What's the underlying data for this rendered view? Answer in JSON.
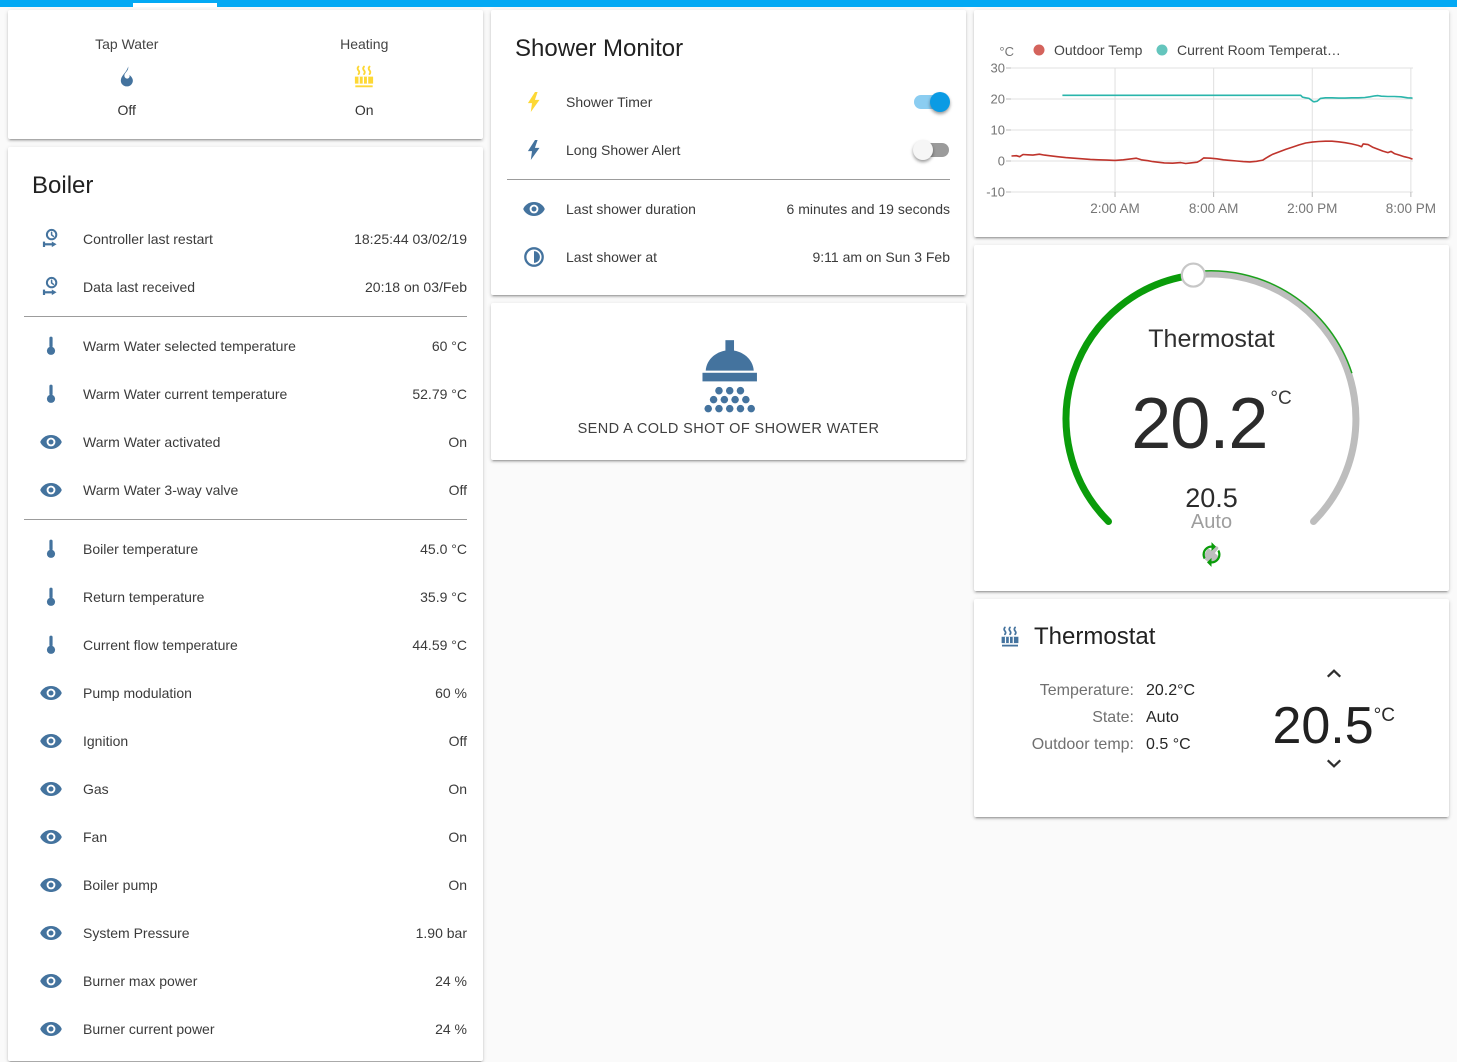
{
  "theme": {
    "topbar_color": "#03a9f4",
    "icon_blue": "#44739e",
    "icon_yellow": "#fdd835",
    "toggle_on": "#0b9be4",
    "toggle_off": "#9b9b9b"
  },
  "glance_card": {
    "items": [
      {
        "label": "Tap Water",
        "icon": "fire-icon",
        "icon_color": "#44739e",
        "state": "Off"
      },
      {
        "label": "Heating",
        "icon": "radiator-icon",
        "icon_color": "#fdd835",
        "state": "On"
      }
    ]
  },
  "boiler_card": {
    "title": "Boiler",
    "sections": [
      [
        {
          "icon": "clock-start-icon",
          "label": "Controller last restart",
          "value": "18:25:44 03/02/19"
        },
        {
          "icon": "clock-start-icon",
          "label": "Data last received",
          "value": "20:18 on 03/Feb"
        }
      ],
      [
        {
          "icon": "thermometer-icon",
          "label": "Warm Water selected temperature",
          "value": "60 °C"
        },
        {
          "icon": "thermometer-icon",
          "label": "Warm Water current temperature",
          "value": "52.79 °C"
        },
        {
          "icon": "eye-icon",
          "label": "Warm Water activated",
          "value": "On"
        },
        {
          "icon": "eye-icon",
          "label": "Warm Water 3-way valve",
          "value": "Off"
        }
      ],
      [
        {
          "icon": "thermometer-icon",
          "label": "Boiler temperature",
          "value": "45.0 °C"
        },
        {
          "icon": "thermometer-icon",
          "label": "Return temperature",
          "value": "35.9 °C"
        },
        {
          "icon": "thermometer-icon",
          "label": "Current flow temperature",
          "value": "44.59 °C"
        },
        {
          "icon": "eye-icon",
          "label": "Pump modulation",
          "value": "60 %"
        },
        {
          "icon": "eye-icon",
          "label": "Ignition",
          "value": "Off"
        },
        {
          "icon": "eye-icon",
          "label": "Gas",
          "value": "On"
        },
        {
          "icon": "eye-icon",
          "label": "Fan",
          "value": "On"
        },
        {
          "icon": "eye-icon",
          "label": "Boiler pump",
          "value": "On"
        },
        {
          "icon": "eye-icon",
          "label": "System Pressure",
          "value": "1.90 bar"
        },
        {
          "icon": "eye-icon",
          "label": "Burner max power",
          "value": "24 %"
        },
        {
          "icon": "eye-icon",
          "label": "Burner current power",
          "value": "24 %"
        }
      ]
    ]
  },
  "shower_card": {
    "title": "Shower Monitor",
    "toggle_rows": [
      {
        "icon": "flash-icon",
        "icon_color": "#fdd835",
        "label": "Shower Timer",
        "on": true
      },
      {
        "icon": "flash-icon",
        "icon_color": "#44739e",
        "label": "Long Shower Alert",
        "on": false
      }
    ],
    "info_rows": [
      {
        "icon": "eye-icon",
        "label": "Last shower duration",
        "value": "6 minutes and 19 seconds"
      },
      {
        "icon": "clock-half-icon",
        "label": "Last shower at",
        "value": "9:11 am on Sun 3 Feb"
      }
    ]
  },
  "shower_button_card": {
    "icon": "shower-head-icon",
    "label": "SEND A COLD SHOT OF SHOWER WATER"
  },
  "chart_data": {
    "type": "line",
    "unit": "°C",
    "legend_position": "top",
    "grid": true,
    "x_range": [
      -4.33,
      20.13
    ],
    "y_range": [
      -10,
      30
    ],
    "y_ticks": [
      30,
      20,
      10,
      0,
      -10
    ],
    "x_ticks": [
      {
        "h": 2,
        "label": "2:00 AM"
      },
      {
        "h": 8,
        "label": "8:00 AM"
      },
      {
        "h": 14,
        "label": "2:00 PM"
      },
      {
        "h": 20,
        "label": "8:00 PM"
      }
    ],
    "series": [
      {
        "name": "Outdoor Temp",
        "line_color": "#bf342c",
        "dot_color": "#d4635c",
        "points": [
          [
            -4.3,
            1.6
          ],
          [
            -4,
            1.7
          ],
          [
            -3.8,
            1.4
          ],
          [
            -3.6,
            2.1
          ],
          [
            -3.3,
            2.0
          ],
          [
            -3,
            1.9
          ],
          [
            -2.6,
            2.2
          ],
          [
            -2.3,
            1.9
          ],
          [
            -2,
            1.7
          ],
          [
            -1.5,
            1.4
          ],
          [
            -1,
            1.1
          ],
          [
            -0.5,
            0.9
          ],
          [
            0,
            0.7
          ],
          [
            0.5,
            0.5
          ],
          [
            1,
            0.4
          ],
          [
            1.5,
            0.3
          ],
          [
            2,
            0.2
          ],
          [
            2.5,
            0.4
          ],
          [
            3,
            0.7
          ],
          [
            3.3,
            0.9
          ],
          [
            3.6,
            0.4
          ],
          [
            4,
            0.1
          ],
          [
            4.3,
            -0.2
          ],
          [
            4.6,
            -0.4
          ],
          [
            5,
            -0.6
          ],
          [
            5.5,
            -0.7
          ],
          [
            6,
            -0.5
          ],
          [
            6.3,
            -0.8
          ],
          [
            6.6,
            -0.6
          ],
          [
            7,
            -0.4
          ],
          [
            7.2,
            0.2
          ],
          [
            7.4,
            1.0
          ],
          [
            7.8,
            0.9
          ],
          [
            8.2,
            0.7
          ],
          [
            8.6,
            0.4
          ],
          [
            9,
            0.2
          ],
          [
            9.4,
            0
          ],
          [
            9.8,
            -0.2
          ],
          [
            10.2,
            -0.3
          ],
          [
            10.6,
            -0.1
          ],
          [
            11,
            0.3
          ],
          [
            11.2,
            1.0
          ],
          [
            11.4,
            1.6
          ],
          [
            11.6,
            2.2
          ],
          [
            12,
            3.0
          ],
          [
            12.4,
            3.8
          ],
          [
            12.8,
            4.5
          ],
          [
            13.2,
            5.2
          ],
          [
            13.6,
            5.8
          ],
          [
            14,
            6.1
          ],
          [
            14.4,
            6.3
          ],
          [
            14.8,
            6.4
          ],
          [
            15.2,
            6.4
          ],
          [
            15.6,
            6.2
          ],
          [
            16,
            5.9
          ],
          [
            16.4,
            5.5
          ],
          [
            16.8,
            5.0
          ],
          [
            17,
            4.6
          ],
          [
            17.1,
            5.5
          ],
          [
            17.4,
            5.3
          ],
          [
            17.7,
            4.4
          ],
          [
            18,
            3.8
          ],
          [
            18.3,
            3.2
          ],
          [
            18.6,
            2.7
          ],
          [
            18.8,
            3.1
          ],
          [
            19,
            2.4
          ],
          [
            19.3,
            1.9
          ],
          [
            19.6,
            1.4
          ],
          [
            19.9,
            1.0
          ],
          [
            20.1,
            0.6
          ]
        ]
      },
      {
        "name": "Current Room Temperat…",
        "line_color": "#2ab5ab",
        "dot_color": "#64c5bd",
        "points": [
          [
            -1.2,
            21.2
          ],
          [
            0,
            21.2
          ],
          [
            2,
            21.2
          ],
          [
            4,
            21.2
          ],
          [
            6,
            21.2
          ],
          [
            8,
            21.2
          ],
          [
            10,
            21.2
          ],
          [
            12,
            21.2
          ],
          [
            13.3,
            21.2
          ],
          [
            13.4,
            20.6
          ],
          [
            13.6,
            20.4
          ],
          [
            13.8,
            20.2
          ],
          [
            14,
            19.4
          ],
          [
            14.1,
            19.1
          ],
          [
            14.3,
            19.3
          ],
          [
            14.5,
            20.2
          ],
          [
            14.8,
            20.4
          ],
          [
            15.2,
            20.4
          ],
          [
            15.6,
            20.3
          ],
          [
            16,
            20.3
          ],
          [
            16.4,
            20.4
          ],
          [
            16.8,
            20.4
          ],
          [
            17.2,
            20.5
          ],
          [
            17.5,
            20.7
          ],
          [
            17.8,
            21.0
          ],
          [
            18,
            21.1
          ],
          [
            18.2,
            20.9
          ],
          [
            18.6,
            20.8
          ],
          [
            19,
            20.8
          ],
          [
            19.4,
            20.7
          ],
          [
            19.8,
            20.4
          ],
          [
            20.1,
            20.3
          ]
        ]
      }
    ]
  },
  "dial_card": {
    "title": "Thermostat",
    "current": "20.2",
    "unit": "°C",
    "target": "20.5",
    "mode": "Auto",
    "knob_angle_deg": 97,
    "arc_start_deg": 225,
    "arc_end_deg": -45,
    "colors": {
      "active": "#0a9c0a",
      "inactive": "#bdbdbd"
    }
  },
  "thermostat_card": {
    "title": "Thermostat",
    "icon": "radiator-icon",
    "attributes": [
      {
        "label": "Temperature:",
        "value": "20.2°C"
      },
      {
        "label": "State:",
        "value": "Auto"
      },
      {
        "label": "Outdoor temp:",
        "value": "0.5 °C"
      }
    ],
    "target": "20.5",
    "target_unit": "°C"
  }
}
